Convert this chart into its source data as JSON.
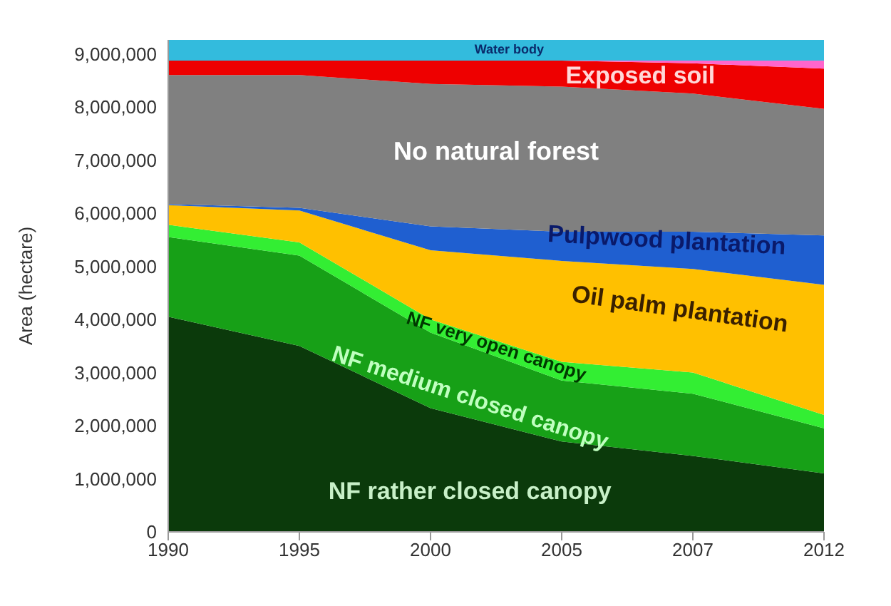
{
  "chart_data": {
    "type": "area",
    "stacked": true,
    "ylabel": "Area (hectare)",
    "categories": [
      "1990",
      "1995",
      "2000",
      "2005",
      "2007",
      "2012"
    ],
    "ylim": [
      0,
      9260000
    ],
    "yticks": [
      0,
      {
        "value": 1000000,
        "label": "1,000,000"
      },
      {
        "value": 2000000,
        "label": "2,000,000"
      },
      {
        "value": 3000000,
        "label": "3,000,000"
      },
      {
        "value": 4000000,
        "label": "4,000,000"
      },
      {
        "value": 5000000,
        "label": "5,000,000"
      },
      {
        "value": 6000000,
        "label": "6,000,000"
      },
      {
        "value": 7000000,
        "label": "7,000,000"
      },
      {
        "value": 8000000,
        "label": "8,000,000"
      },
      {
        "value": 9000000,
        "label": "9,000,000"
      }
    ],
    "series": [
      {
        "name": "NF rather closed canopy",
        "color": "#0b3a0b",
        "values": [
          4050000,
          3500000,
          2330000,
          1700000,
          1430000,
          1100000
        ]
      },
      {
        "name": "NF medium closed canopy",
        "color": "#17a017",
        "values": [
          1500000,
          1700000,
          1420000,
          1150000,
          1170000,
          850000
        ]
      },
      {
        "name": "NF very open canopy",
        "color": "#33ee33",
        "values": [
          230000,
          250000,
          250000,
          350000,
          400000,
          250000
        ]
      },
      {
        "name": "Oil palm plantation",
        "color": "#ffc000",
        "values": [
          370000,
          600000,
          1300000,
          1900000,
          1950000,
          2450000
        ]
      },
      {
        "name": "Pulpwood plantation",
        "color": "#1f5fd0",
        "values": [
          20000,
          50000,
          450000,
          550000,
          700000,
          930000
        ]
      },
      {
        "name": "No natural forest",
        "color": "#808080",
        "values": [
          2430000,
          2500000,
          2680000,
          2730000,
          2600000,
          2380000
        ]
      },
      {
        "name": "Exposed soil",
        "color": "#ee0000",
        "values": [
          270000,
          270000,
          440000,
          490000,
          570000,
          760000
        ]
      },
      {
        "color": "#ff66cc",
        "values": [
          0,
          0,
          0,
          0,
          50000,
          150000
        ]
      },
      {
        "name": "Water body",
        "color": "#33bbdd",
        "values": [
          390000,
          390000,
          390000,
          390000,
          390000,
          390000
        ]
      }
    ]
  }
}
